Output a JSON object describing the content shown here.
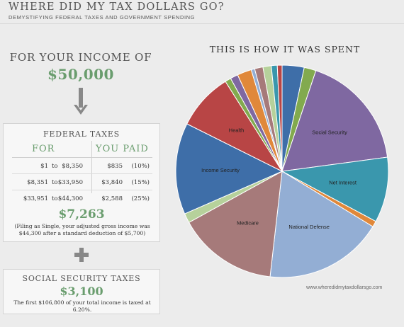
{
  "header": {
    "title": "WHERE DID MY TAX DOLLARS GO?",
    "subtitle": "DEMYSTIFYING FEDERAL TAXES AND GOVERNMENT SPENDING"
  },
  "income": {
    "label": "FOR YOUR INCOME OF",
    "value": "$50,000"
  },
  "federal_taxes": {
    "title": "FEDERAL TAXES",
    "col_for": "FOR",
    "col_paid": "YOU PAID",
    "brackets": [
      {
        "from": "$1",
        "to": "to",
        "upper": "$8,350",
        "paid": "$835",
        "rate": "(10%)"
      },
      {
        "from": "$8,351",
        "to": "to",
        "upper": "$33,950",
        "paid": "$3,840",
        "rate": "(15%)"
      },
      {
        "from": "$33,951",
        "to": "to",
        "upper": "$44,300",
        "paid": "$2,588",
        "rate": "(25%)"
      }
    ],
    "total": "$7,263",
    "note": "(Filing as Single, your adjusted gross income was $44,300 after a standard deduction of $5,700)"
  },
  "social_security_taxes": {
    "title": "SOCIAL SECURITY TAXES",
    "total": "$3,100",
    "note": "The first $106,800 of your total income is taxed at 6.20%."
  },
  "site_url": "www.wheredidmytaxdollarsgo.com",
  "chart_data": {
    "type": "pie",
    "title": "THIS IS HOW IT WAS SPENT",
    "start_angle_deg": 0,
    "slices": [
      {
        "label": "",
        "value": 3.7,
        "color": "#3e6ea8"
      },
      {
        "label": "",
        "value": 2.0,
        "color": "#82aa4e"
      },
      {
        "label": "Social Security",
        "value": 19.6,
        "color": "#7f68a1"
      },
      {
        "label": "Net Interest",
        "value": 11.0,
        "color": "#3a97ad"
      },
      {
        "label": "",
        "value": 1.0,
        "color": "#e0883a"
      },
      {
        "label": "National Defense",
        "value": 20.0,
        "color": "#93aed4"
      },
      {
        "label": "Medicare",
        "value": 16.8,
        "color": "#a67a7a"
      },
      {
        "label": "",
        "value": 1.6,
        "color": "#b6d19b"
      },
      {
        "label": "Income Security",
        "value": 15.4,
        "color": "#3e6ea8"
      },
      {
        "label": "Health",
        "value": 9.6,
        "color": "#b84545"
      },
      {
        "label": "",
        "value": 1.0,
        "color": "#82aa4e"
      },
      {
        "label": "",
        "value": 1.3,
        "color": "#7f68a1"
      },
      {
        "label": "",
        "value": 2.4,
        "color": "#e0883a"
      },
      {
        "label": "",
        "value": 0.6,
        "color": "#93aed4"
      },
      {
        "label": "",
        "value": 1.4,
        "color": "#a67a7a"
      },
      {
        "label": "",
        "value": 1.4,
        "color": "#b6d19b"
      },
      {
        "label": "",
        "value": 1.0,
        "color": "#3a97ad"
      },
      {
        "label": "",
        "value": 0.8,
        "color": "#b84545"
      }
    ]
  }
}
